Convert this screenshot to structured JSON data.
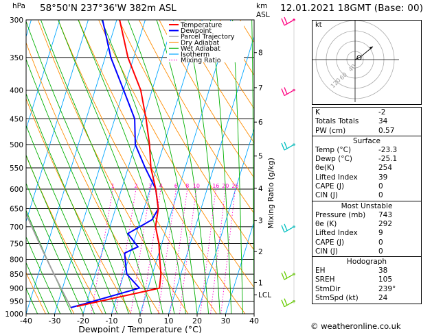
{
  "header": {
    "pressure_unit": "hPa",
    "location": "58°50'N  237°36'W  382m  ASL",
    "km_unit": "km",
    "asl_unit": "ASL",
    "datetime": "12.01.2021  18GMT  (Base: 00)"
  },
  "chart_data": {
    "type": "skew-t",
    "pressure_levels": [
      300,
      350,
      400,
      450,
      500,
      550,
      600,
      650,
      700,
      750,
      800,
      850,
      900,
      950,
      1000
    ],
    "temperature_ticks": [
      -40,
      -30,
      -20,
      -10,
      0,
      10,
      20,
      30,
      40
    ],
    "xlabel": "Dewpoint / Temperature (°C)",
    "ylabel_right": "Mixing Ratio (g/kg)",
    "km_ticks": [
      {
        "label": "8",
        "p": 343
      },
      {
        "label": "7",
        "p": 396
      },
      {
        "label": "6",
        "p": 456
      },
      {
        "label": "5",
        "p": 524
      },
      {
        "label": "4",
        "p": 598
      },
      {
        "label": "3",
        "p": 682
      },
      {
        "label": "2",
        "p": 775
      },
      {
        "label": "1",
        "p": 880
      },
      {
        "label": "LCL",
        "p": 925
      }
    ],
    "mixing_ratio_labels": [
      "1",
      "2",
      "3",
      "4",
      "6",
      "8",
      "10",
      "16",
      "20",
      "25"
    ],
    "mixing_ratio_values": [
      1,
      2,
      3,
      4,
      6,
      8,
      10,
      16,
      20,
      25
    ],
    "legend": [
      "Temperature",
      "Dewpoint",
      "Parcel Trajectory",
      "Dry Adiabat",
      "Wet Adiabat",
      "Isotherm",
      "Mixing Ratio"
    ],
    "colors": {
      "temperature": "#ff0000",
      "dewpoint": "#0000ff",
      "parcel": "#a0a0a0",
      "dry_adiabat": "#ff8c00",
      "wet_adiabat": "#00b000",
      "isotherm": "#00a6ff",
      "mixing_ratio": "#ff00cc"
    },
    "temperature_profile": [
      {
        "p": 970,
        "t": -23
      },
      {
        "p": 900,
        "t": 4
      },
      {
        "p": 850,
        "t": 3
      },
      {
        "p": 800,
        "t": 1
      },
      {
        "p": 750,
        "t": -1
      },
      {
        "p": 700,
        "t": -4
      },
      {
        "p": 650,
        "t": -5
      },
      {
        "p": 600,
        "t": -8
      },
      {
        "p": 550,
        "t": -12
      },
      {
        "p": 500,
        "t": -15
      },
      {
        "p": 450,
        "t": -19
      },
      {
        "p": 400,
        "t": -24
      },
      {
        "p": 350,
        "t": -32
      },
      {
        "p": 300,
        "t": -39
      }
    ],
    "dewpoint_profile": [
      {
        "p": 975,
        "t": -25
      },
      {
        "p": 900,
        "t": -3
      },
      {
        "p": 850,
        "t": -9
      },
      {
        "p": 780,
        "t": -12
      },
      {
        "p": 760,
        "t": -8
      },
      {
        "p": 720,
        "t": -13
      },
      {
        "p": 680,
        "t": -6
      },
      {
        "p": 650,
        "t": -5
      },
      {
        "p": 600,
        "t": -8
      },
      {
        "p": 550,
        "t": -14
      },
      {
        "p": 500,
        "t": -20
      },
      {
        "p": 450,
        "t": -23
      },
      {
        "p": 400,
        "t": -30
      },
      {
        "p": 350,
        "t": -38
      },
      {
        "p": 300,
        "t": -45
      }
    ],
    "wind_barbs_pressure": [
      300,
      400,
      500,
      700,
      850,
      950
    ]
  },
  "hodograph": {
    "label": "kt",
    "ring_labels": [
      "40",
      "60",
      "120"
    ]
  },
  "indices": [
    {
      "label": "K",
      "value": "-2"
    },
    {
      "label": "Totals Totals",
      "value": "34"
    },
    {
      "label": "PW (cm)",
      "value": "0.57"
    }
  ],
  "surface": {
    "title": "Surface",
    "rows": [
      {
        "label": "Temp (°C)",
        "value": "-23.3"
      },
      {
        "label": "Dewp (°C)",
        "value": "-25.1"
      },
      {
        "label": "θe(K)",
        "value": "254"
      },
      {
        "label": "Lifted Index",
        "value": "39"
      },
      {
        "label": "CAPE (J)",
        "value": "0"
      },
      {
        "label": "CIN (J)",
        "value": "0"
      }
    ]
  },
  "most_unstable": {
    "title": "Most Unstable",
    "rows": [
      {
        "label": "Pressure (mb)",
        "value": "743"
      },
      {
        "label": "θe (K)",
        "value": "292"
      },
      {
        "label": "Lifted Index",
        "value": "9"
      },
      {
        "label": "CAPE (J)",
        "value": "0"
      },
      {
        "label": "CIN (J)",
        "value": "0"
      }
    ]
  },
  "hodograph_table": {
    "title": "Hodograph",
    "rows": [
      {
        "label": "EH",
        "value": "38"
      },
      {
        "label": "SREH",
        "value": "105"
      },
      {
        "label": "StmDir",
        "value": "239°"
      },
      {
        "label": "StmSpd (kt)",
        "value": "24"
      }
    ]
  },
  "footer": "© weatheronline.co.uk"
}
